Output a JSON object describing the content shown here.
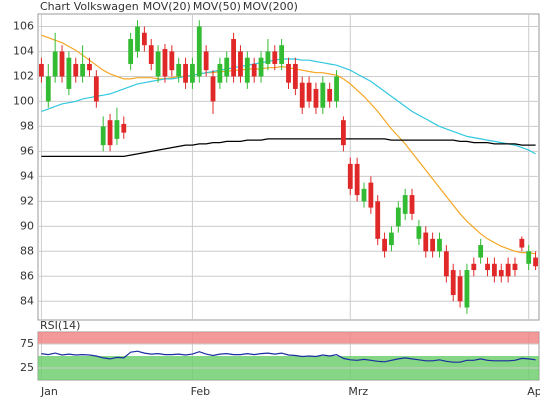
{
  "chart_data": [
    {
      "type": "candlestick",
      "title": "Chart Volkswagen",
      "categories": [
        "Jan",
        null,
        null,
        null,
        null,
        null,
        null,
        null,
        null,
        null,
        null,
        null,
        null,
        null,
        null,
        null,
        null,
        null,
        null,
        null,
        null,
        null,
        "Feb",
        null,
        null,
        null,
        null,
        null,
        null,
        null,
        null,
        null,
        null,
        null,
        null,
        null,
        null,
        null,
        null,
        null,
        null,
        null,
        null,
        null,
        null,
        "Mrz",
        null,
        null,
        null,
        null,
        null,
        null,
        null,
        null,
        null,
        null,
        null,
        null,
        null,
        null,
        null,
        null,
        null,
        null,
        null,
        null,
        null,
        null,
        null,
        null,
        null,
        "Apr",
        null
      ],
      "open": [
        103,
        100,
        102,
        104,
        101,
        103,
        102,
        103,
        102,
        96.5,
        98.5,
        97,
        98.2,
        103,
        104,
        105.5,
        104.5,
        102,
        104.2,
        104,
        102,
        103,
        101.5,
        102,
        104,
        102,
        101.5,
        102,
        105,
        104,
        101.5,
        103,
        102,
        103,
        104,
        103,
        103,
        103,
        101.5,
        101.5,
        101,
        99.5,
        101,
        100,
        98.5,
        95,
        95,
        92,
        93.5,
        92,
        89,
        88.5,
        90,
        91,
        92.5,
        89,
        89.5,
        89,
        88,
        88,
        86.5,
        86,
        83.5,
        87,
        87.5,
        87,
        87,
        86.5,
        87,
        87,
        89,
        87,
        87.5
      ],
      "high": [
        103.5,
        103,
        105.5,
        104.5,
        104,
        103.5,
        104.5,
        103.5,
        102.5,
        98.8,
        99,
        99.5,
        98.8,
        105.5,
        106.5,
        106,
        105,
        104.5,
        104.6,
        104.5,
        103.5,
        103.5,
        103.5,
        106.5,
        104.5,
        102.5,
        103.5,
        104,
        105.5,
        104.5,
        104,
        103.5,
        104,
        105,
        104.5,
        105,
        103.5,
        103.5,
        102,
        102,
        101.5,
        102,
        101.5,
        102.5,
        98.8,
        95.5,
        95.5,
        93.5,
        94,
        92.5,
        89.5,
        90,
        92,
        93,
        93,
        90.5,
        90,
        89.5,
        89.5,
        88.5,
        87,
        86.5,
        87,
        87.5,
        89,
        87.5,
        87.5,
        87,
        87.5,
        87.5,
        89.2,
        88.5,
        88
      ],
      "low": [
        101.5,
        99.5,
        101.5,
        101.5,
        100.5,
        101.5,
        101.5,
        102,
        99.5,
        96,
        96,
        96.5,
        97,
        102.5,
        103.5,
        104,
        102.5,
        101.5,
        101.5,
        102,
        101.5,
        101,
        101,
        101.5,
        102,
        99,
        101,
        101.5,
        101.5,
        101.5,
        101,
        101.5,
        101.5,
        102.5,
        102.5,
        102.5,
        101,
        100.5,
        99,
        99.5,
        99,
        99,
        99.5,
        99.5,
        96,
        92.5,
        92,
        91.5,
        91,
        88.5,
        87.5,
        88,
        89.5,
        90.5,
        90.5,
        88.5,
        87.5,
        87.5,
        87.5,
        85.5,
        84,
        83.5,
        83,
        86,
        87,
        86,
        85.5,
        85.5,
        85.5,
        86,
        88,
        86.5,
        86.5
      ],
      "close": [
        102,
        102,
        104,
        102,
        103.5,
        102,
        103,
        102.5,
        100,
        98,
        96.5,
        98.5,
        97.5,
        105,
        106,
        104.5,
        103,
        104,
        102,
        102.5,
        103,
        101.5,
        103,
        106,
        102.5,
        100,
        103,
        103.5,
        102,
        102,
        103.5,
        102,
        103.5,
        104,
        103,
        104.5,
        101.5,
        101,
        99.5,
        100,
        99.5,
        101.5,
        100,
        102,
        96.5,
        93,
        92.5,
        93,
        91.5,
        89,
        88,
        89.5,
        91.5,
        92.5,
        91,
        90,
        88,
        88,
        89,
        86,
        84.5,
        84,
        86.5,
        86.5,
        88.5,
        86.5,
        86,
        86,
        86,
        86.5,
        88.3,
        88,
        86.8
      ],
      "up_color": "#33bb33",
      "down_color": "#e02828",
      "series": [
        {
          "name": "MOV(20)",
          "color": "#f5a623",
          "values": [
            105.3,
            105.1,
            104.9,
            104.7,
            104.4,
            104.1,
            103.7,
            103.3,
            102.9,
            102.5,
            102.2,
            102.0,
            101.8,
            101.8,
            101.9,
            101.9,
            101.9,
            101.8,
            101.8,
            101.9,
            102.0,
            102.0,
            102.1,
            102.2,
            102.3,
            102.3,
            102.4,
            102.4,
            102.5,
            102.5,
            102.6,
            102.6,
            102.6,
            102.7,
            102.7,
            102.8,
            102.7,
            102.6,
            102.5,
            102.4,
            102.3,
            102.3,
            102.2,
            102.1,
            101.8,
            101.4,
            100.9,
            100.4,
            99.8,
            99.2,
            98.5,
            97.8,
            97.2,
            96.6,
            95.9,
            95.2,
            94.5,
            93.8,
            93.1,
            92.4,
            91.7,
            91.0,
            90.4,
            89.9,
            89.4,
            89.0,
            88.7,
            88.4,
            88.2,
            88.0,
            87.9,
            87.9,
            87.8
          ]
        },
        {
          "name": "MOV(50)",
          "color": "#33c8e0",
          "values": [
            99.2,
            99.4,
            99.6,
            99.8,
            99.9,
            100.0,
            100.2,
            100.3,
            100.4,
            100.5,
            100.6,
            100.8,
            101.0,
            101.2,
            101.4,
            101.5,
            101.6,
            101.7,
            101.8,
            101.8,
            101.9,
            102.0,
            102.1,
            102.2,
            102.3,
            102.4,
            102.5,
            102.6,
            102.7,
            102.8,
            102.9,
            103.0,
            103.1,
            103.2,
            103.3,
            103.4,
            103.4,
            103.4,
            103.3,
            103.3,
            103.2,
            103.1,
            103.0,
            102.9,
            102.7,
            102.5,
            102.2,
            101.9,
            101.6,
            101.2,
            100.8,
            100.4,
            100.0,
            99.6,
            99.2,
            98.9,
            98.6,
            98.3,
            98.0,
            97.8,
            97.6,
            97.4,
            97.2,
            97.1,
            97.0,
            96.9,
            96.8,
            96.7,
            96.6,
            96.5,
            96.3,
            96.1,
            95.8
          ]
        },
        {
          "name": "MOV(200)",
          "color": "#000000",
          "values": [
            95.6,
            95.6,
            95.6,
            95.6,
            95.6,
            95.6,
            95.6,
            95.6,
            95.6,
            95.6,
            95.6,
            95.6,
            95.6,
            95.7,
            95.8,
            95.9,
            96.0,
            96.1,
            96.2,
            96.3,
            96.4,
            96.5,
            96.5,
            96.6,
            96.6,
            96.7,
            96.7,
            96.8,
            96.8,
            96.8,
            96.9,
            96.9,
            96.9,
            97.0,
            97.0,
            97.0,
            97.0,
            97.0,
            97.0,
            97.0,
            97.0,
            97.0,
            97.0,
            97.0,
            97.0,
            97.0,
            97.0,
            97.0,
            97.0,
            97.0,
            97.0,
            96.9,
            96.9,
            96.9,
            96.9,
            96.9,
            96.9,
            96.9,
            96.9,
            96.9,
            96.9,
            96.8,
            96.8,
            96.7,
            96.7,
            96.7,
            96.6,
            96.6,
            96.6,
            96.6,
            96.5,
            96.5,
            96.5
          ]
        }
      ],
      "ylim": [
        82.5,
        107
      ],
      "yticks": [
        84,
        86,
        88,
        90,
        92,
        94,
        96,
        98,
        100,
        102,
        104,
        106
      ],
      "grid": true
    },
    {
      "type": "line",
      "title": "RSI(14)",
      "series": [
        {
          "name": "RSI(14)",
          "color": "#1a2fa0",
          "values": [
            55,
            53,
            56,
            52,
            54,
            52,
            53,
            52,
            50,
            46,
            44,
            47,
            46,
            58,
            60,
            56,
            54,
            55,
            53,
            53,
            54,
            52,
            54,
            59,
            54,
            51,
            54,
            55,
            53,
            53,
            55,
            53,
            55,
            56,
            54,
            56,
            52,
            51,
            49,
            50,
            49,
            52,
            50,
            53,
            45,
            42,
            41,
            43,
            41,
            39,
            38,
            41,
            44,
            46,
            44,
            42,
            40,
            40,
            42,
            39,
            37,
            37,
            41,
            41,
            44,
            41,
            40,
            40,
            40,
            41,
            45,
            44,
            42
          ]
        }
      ],
      "ylim": [
        0,
        100
      ],
      "yticks": [
        25,
        75
      ],
      "band_colors": [
        "#f08080",
        "#66cc66"
      ]
    }
  ]
}
